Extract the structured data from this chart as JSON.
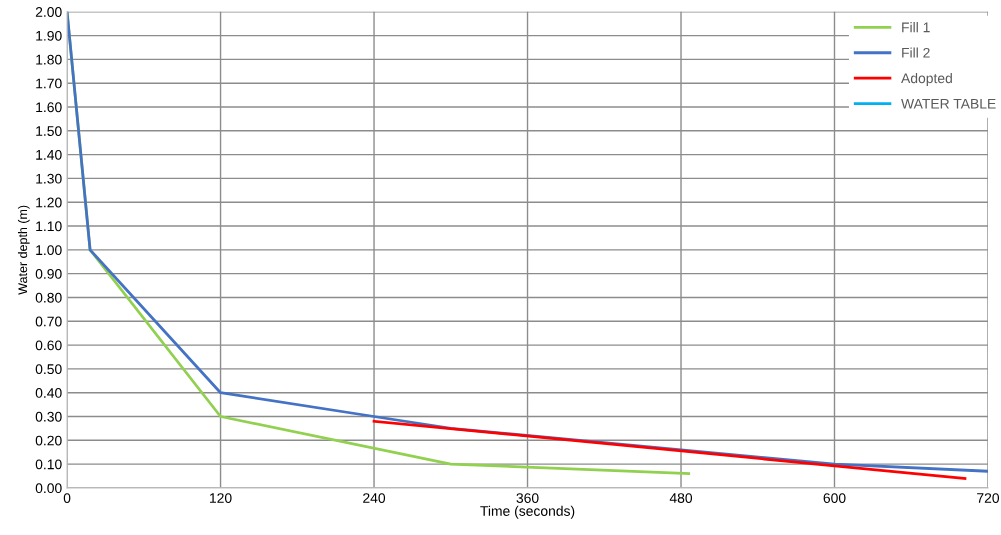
{
  "chart_data": {
    "type": "line",
    "xlabel": "Time (seconds)",
    "ylabel": "Water depth (m)",
    "xlim": [
      0,
      720
    ],
    "xticks": [
      0,
      120,
      240,
      360,
      480,
      600,
      720
    ],
    "ylim": [
      0,
      2
    ],
    "yticks": [
      {
        "value": 0,
        "label": "0.00"
      },
      {
        "value": 0.1,
        "label": "0.10"
      },
      {
        "value": 0.2,
        "label": "0.20"
      },
      {
        "value": 0.3,
        "label": "0.30"
      },
      {
        "value": 0.4,
        "label": "0.40"
      },
      {
        "value": 0.5,
        "label": "0.50"
      },
      {
        "value": 0.6,
        "label": "0.60"
      },
      {
        "value": 0.7,
        "label": "0.70"
      },
      {
        "value": 0.8,
        "label": "0.80"
      },
      {
        "value": 0.9,
        "label": "0.90"
      },
      {
        "value": 1.0,
        "label": "1.00"
      },
      {
        "value": 1.1,
        "label": "1.10"
      },
      {
        "value": 1.2,
        "label": "1.20"
      },
      {
        "value": 1.3,
        "label": "1.30"
      },
      {
        "value": 1.4,
        "label": "1.40"
      },
      {
        "value": 1.5,
        "label": "1.50"
      },
      {
        "value": 1.6,
        "label": "1.60"
      },
      {
        "value": 1.7,
        "label": "1.70"
      },
      {
        "value": 1.8,
        "label": "1.80"
      },
      {
        "value": 1.9,
        "label": "1.90"
      },
      {
        "value": 2.0,
        "label": "2.00"
      }
    ],
    "grid": true,
    "legend": "top right",
    "marker": "none",
    "line_style": "solid",
    "series": [
      {
        "name": "Fill 1",
        "color": "#92d050",
        "x": [
          0,
          18,
          120,
          300,
          486
        ],
        "values": [
          2.0,
          1.0,
          0.3,
          0.1,
          0.06
        ]
      },
      {
        "name": "Fill 2",
        "color": "#4472c4",
        "x": [
          0,
          18,
          120,
          240,
          300,
          600,
          720
        ],
        "values": [
          2.0,
          1.0,
          0.4,
          0.3,
          0.25,
          0.1,
          0.07
        ]
      },
      {
        "name": "Adopted",
        "color": "#ff0000",
        "x": [
          240,
          702
        ],
        "values": [
          0.28,
          0.04
        ]
      },
      {
        "name": "WATER TABLE",
        "color": "#00b0f0"
      }
    ]
  }
}
